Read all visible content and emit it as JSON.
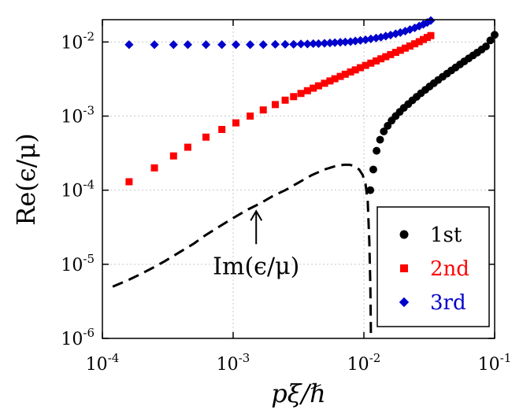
{
  "chart_data": {
    "type": "scatter",
    "title": "",
    "xlabel": "pξ/ℏ",
    "ylabel": "Re(ϵ/μ)",
    "xscale": "log",
    "yscale": "log",
    "xlim": [
      0.0001,
      0.1
    ],
    "ylim": [
      1e-06,
      0.02
    ],
    "grid": true,
    "legend_position": "bottom-right",
    "x_ticks": [
      {
        "value": 0.0001,
        "base": "10",
        "exp": "-4"
      },
      {
        "value": 0.001,
        "base": "10",
        "exp": "-3"
      },
      {
        "value": 0.01,
        "base": "10",
        "exp": "-2"
      },
      {
        "value": 0.1,
        "base": "10",
        "exp": "-1"
      }
    ],
    "y_ticks": [
      {
        "value": 1e-06,
        "base": "10",
        "exp": "-6"
      },
      {
        "value": 1e-05,
        "base": "10",
        "exp": "-5"
      },
      {
        "value": 0.0001,
        "base": "10",
        "exp": "-4"
      },
      {
        "value": 0.001,
        "base": "10",
        "exp": "-3"
      },
      {
        "value": 0.01,
        "base": "10",
        "exp": "-2"
      }
    ],
    "series": [
      {
        "name": "1st",
        "color": "#000000",
        "marker": "circle",
        "x": [
          0.0112,
          0.0118,
          0.0125,
          0.0133,
          0.0142,
          0.0152,
          0.0163,
          0.0175,
          0.0188,
          0.0202,
          0.0218,
          0.0235,
          0.0253,
          0.0273,
          0.0295,
          0.0318,
          0.0343,
          0.037,
          0.04,
          0.0432,
          0.0466,
          0.0503,
          0.0543,
          0.0586,
          0.0633,
          0.0683,
          0.0737,
          0.0795,
          0.0858,
          0.0926,
          0.1
        ],
        "y": [
          0.0001,
          0.00019,
          0.00034,
          0.00048,
          0.00062,
          0.00074,
          0.00087,
          0.001,
          0.00114,
          0.00129,
          0.00145,
          0.00163,
          0.00182,
          0.00203,
          0.00226,
          0.00251,
          0.00278,
          0.00307,
          0.00339,
          0.00374,
          0.00412,
          0.00453,
          0.00498,
          0.00547,
          0.006,
          0.00658,
          0.0072,
          0.0079,
          0.0087,
          0.0105,
          0.0125
        ]
      },
      {
        "name": "2nd",
        "color": "#ff0000",
        "marker": "square",
        "x": [
          0.00016,
          0.00025,
          0.00035,
          0.00045,
          0.00062,
          0.00082,
          0.00105,
          0.00135,
          0.0017,
          0.0021,
          0.0025,
          0.0029,
          0.0033,
          0.0037,
          0.0041,
          0.0045,
          0.005,
          0.0055,
          0.006,
          0.0066,
          0.0072,
          0.0079,
          0.0086,
          0.0094,
          0.0103,
          0.0113,
          0.0124,
          0.0135,
          0.0147,
          0.016,
          0.0175,
          0.019,
          0.0207,
          0.0225,
          0.0245,
          0.0265,
          0.0285,
          0.0305,
          0.0325
        ],
        "y": [
          0.00013,
          0.0002,
          0.00029,
          0.00038,
          0.00052,
          0.00066,
          0.00081,
          0.001,
          0.00121,
          0.00143,
          0.00164,
          0.00183,
          0.00202,
          0.0022,
          0.00238,
          0.00256,
          0.00277,
          0.00298,
          0.00319,
          0.00343,
          0.00367,
          0.00394,
          0.0042,
          0.0045,
          0.00483,
          0.00518,
          0.00555,
          0.00593,
          0.00633,
          0.00676,
          0.00724,
          0.00772,
          0.00825,
          0.00882,
          0.00945,
          0.0101,
          0.0108,
          0.0115,
          0.0122
        ]
      },
      {
        "name": "3rd",
        "color": "#0000cc",
        "marker": "diamond",
        "x": [
          0.00016,
          0.00025,
          0.00035,
          0.00045,
          0.00062,
          0.00082,
          0.00105,
          0.00135,
          0.0017,
          0.0021,
          0.0025,
          0.0029,
          0.0033,
          0.0037,
          0.0041,
          0.0045,
          0.005,
          0.0055,
          0.006,
          0.0066,
          0.0072,
          0.0079,
          0.0086,
          0.0094,
          0.0103,
          0.0113,
          0.0124,
          0.0135,
          0.0147,
          0.016,
          0.0175,
          0.019,
          0.0207,
          0.0225,
          0.0245,
          0.0265,
          0.0285,
          0.0305,
          0.0325
        ],
        "y": [
          0.0092,
          0.0092,
          0.0092,
          0.0092,
          0.0092,
          0.0092,
          0.0092,
          0.0092,
          0.0092,
          0.0093,
          0.0093,
          0.0093,
          0.0094,
          0.0094,
          0.0095,
          0.0095,
          0.0096,
          0.0097,
          0.0098,
          0.0099,
          0.01,
          0.0101,
          0.0103,
          0.0105,
          0.0107,
          0.011,
          0.0113,
          0.0116,
          0.012,
          0.0124,
          0.0129,
          0.0134,
          0.014,
          0.0147,
          0.0155,
          0.0164,
          0.0173,
          0.0183,
          0.0195
        ]
      },
      {
        "name": "Im(ϵ/μ)",
        "color": "#000000",
        "line": "dashed",
        "x": [
          0.00012,
          0.00016,
          0.0002,
          0.00025,
          0.0003,
          0.0004,
          0.0005,
          0.0006,
          0.0008,
          0.001,
          0.0013,
          0.0016,
          0.002,
          0.0025,
          0.003,
          0.0035,
          0.004,
          0.005,
          0.006,
          0.007,
          0.0078,
          0.0085,
          0.0092,
          0.0098,
          0.0103,
          0.0107,
          0.011,
          0.0112,
          0.0113,
          0.01132,
          0.01134
        ],
        "y": [
          5e-06,
          6.2e-06,
          7.5e-06,
          9.2e-06,
          1.1e-05,
          1.5e-05,
          1.9e-05,
          2.4e-05,
          3.3e-05,
          4.2e-05,
          5.5e-05,
          6.6e-05,
          8.3e-05,
          0.0001,
          0.00012,
          0.00014,
          0.00016,
          0.00019,
          0.00021,
          0.00022,
          0.00022,
          0.00021,
          0.00019,
          0.00016,
          0.00012,
          7e-05,
          2e-05,
          5e-06,
          1.5e-06,
          1.1e-06,
          1e-06
        ]
      }
    ],
    "annotations": [
      {
        "text": "Im(ϵ/μ)",
        "arrow_to": {
          "x": 0.0015,
          "y": 7e-05
        }
      }
    ]
  }
}
